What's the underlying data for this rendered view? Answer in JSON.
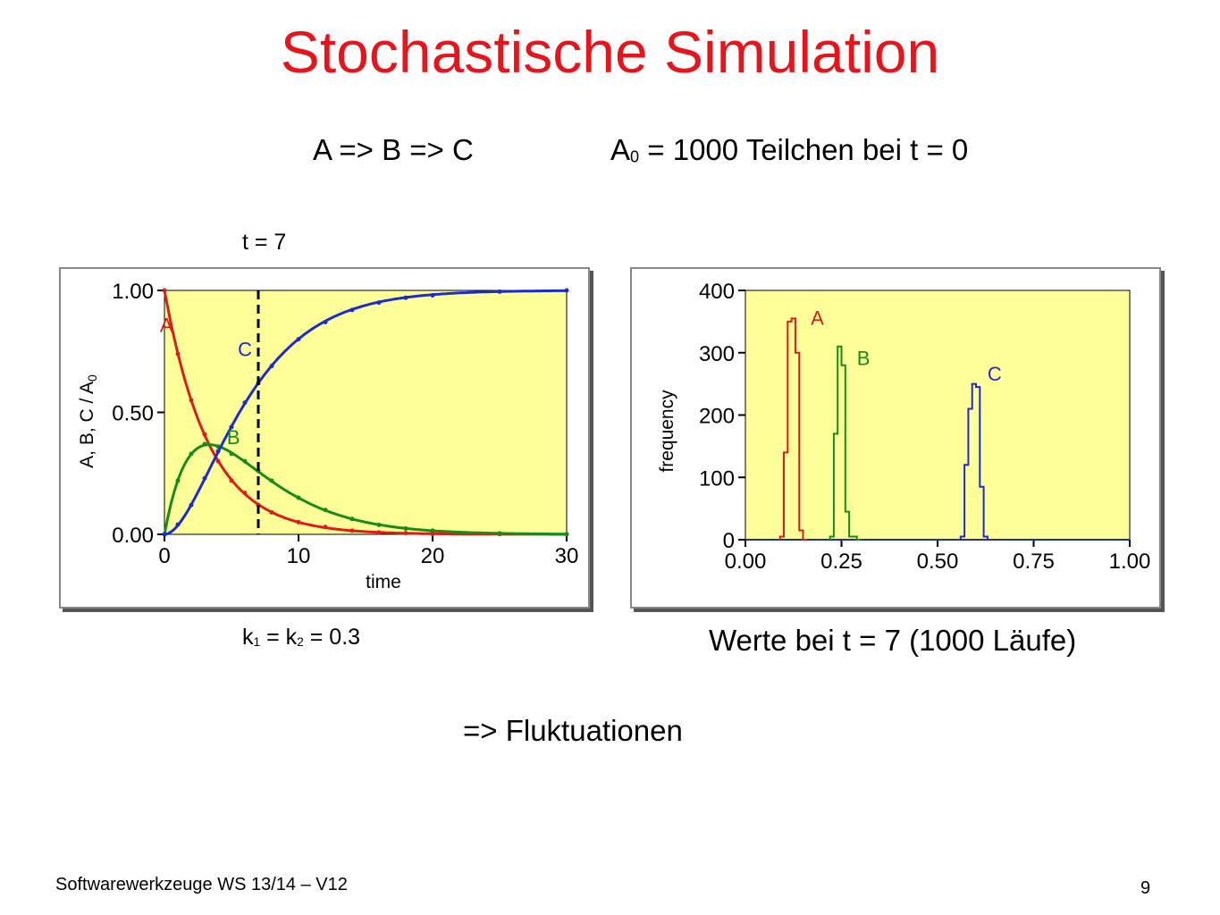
{
  "slide": {
    "title": "Stochastische Simulation",
    "reaction": "A => B => C",
    "initial_prefix": "A",
    "initial_sub": "0",
    "initial_rest": " = 1000  Teilchen bei t = 0",
    "t_marker": "t = 7",
    "rate_k1": "k",
    "rate_sub1": "1",
    "rate_mid": " = k",
    "rate_sub2": "2",
    "rate_end": " = 0.3",
    "right_caption": "Werte bei t = 7 (1000 Läufe)",
    "conclusion": "=> Fluktuationen",
    "footer": "Softwarewerkzeuge WS 13/14 –  V12",
    "page_number": "9"
  },
  "colors": {
    "title": "#e8141b",
    "A": "#dd1c1c",
    "B": "#1a8a1a",
    "C": "#1c2bd0",
    "plot_bg": "#ffff99"
  },
  "chart_data": [
    {
      "type": "line",
      "ylabel": "A, B, C / A",
      "ylabel_sub": "0",
      "xlabel": "time",
      "xlim": [
        0,
        30
      ],
      "ylim": [
        0,
        1
      ],
      "x_ticks": [
        "0",
        "10",
        "20",
        "30"
      ],
      "y_ticks": [
        "0.00",
        "0.50",
        "1.00"
      ],
      "vertical_marker": {
        "x": 7,
        "style": "dashed"
      },
      "model": {
        "k1": 0.3,
        "k2": 0.3,
        "A0": 1
      },
      "series": [
        {
          "name": "A",
          "color": "#dd1c1c",
          "x": [
            0,
            1,
            2,
            3,
            4,
            5,
            6,
            7,
            8,
            10,
            12,
            14,
            16,
            18,
            20,
            25,
            30
          ],
          "values": [
            1.0,
            0.74,
            0.55,
            0.41,
            0.3,
            0.22,
            0.17,
            0.12,
            0.09,
            0.05,
            0.03,
            0.015,
            0.008,
            0.005,
            0.002,
            0.001,
            0.0
          ]
        },
        {
          "name": "B",
          "color": "#1a8a1a",
          "x": [
            0,
            1,
            2,
            3,
            4,
            5,
            6,
            7,
            8,
            10,
            12,
            14,
            16,
            18,
            20,
            25,
            30
          ],
          "values": [
            0.0,
            0.22,
            0.33,
            0.37,
            0.36,
            0.33,
            0.3,
            0.26,
            0.22,
            0.15,
            0.1,
            0.063,
            0.039,
            0.024,
            0.015,
            0.004,
            0.001
          ]
        },
        {
          "name": "C",
          "color": "#1c2bd0",
          "x": [
            0,
            1,
            2,
            3,
            4,
            5,
            6,
            7,
            8,
            10,
            12,
            14,
            16,
            18,
            20,
            25,
            30
          ],
          "values": [
            0.0,
            0.04,
            0.12,
            0.23,
            0.34,
            0.44,
            0.54,
            0.62,
            0.69,
            0.8,
            0.87,
            0.92,
            0.95,
            0.97,
            0.98,
            0.995,
            1.0
          ]
        }
      ]
    },
    {
      "type": "bar",
      "histogram": true,
      "ylabel": "frequency",
      "xlim": [
        0,
        1
      ],
      "ylim": [
        0,
        400
      ],
      "x_ticks": [
        "0.00",
        "0.25",
        "0.50",
        "0.75",
        "1.00"
      ],
      "y_ticks": [
        "0",
        "100",
        "200",
        "300",
        "400"
      ],
      "bin_width": 0.01,
      "series": [
        {
          "name": "A",
          "color": "#dd1c1c",
          "x": [
            0.09,
            0.1,
            0.11,
            0.12,
            0.13,
            0.14,
            0.15
          ],
          "values": [
            5,
            140,
            350,
            355,
            300,
            15,
            0
          ]
        },
        {
          "name": "B",
          "color": "#1a8a1a",
          "x": [
            0.22,
            0.23,
            0.24,
            0.25,
            0.26,
            0.27,
            0.28,
            0.29
          ],
          "values": [
            5,
            170,
            310,
            280,
            45,
            5,
            5,
            0
          ]
        },
        {
          "name": "C",
          "color": "#1c2bd0",
          "x": [
            0.56,
            0.57,
            0.58,
            0.59,
            0.6,
            0.61,
            0.62,
            0.63,
            0.64
          ],
          "values": [
            5,
            120,
            210,
            250,
            245,
            85,
            5,
            0,
            0
          ]
        }
      ]
    }
  ]
}
